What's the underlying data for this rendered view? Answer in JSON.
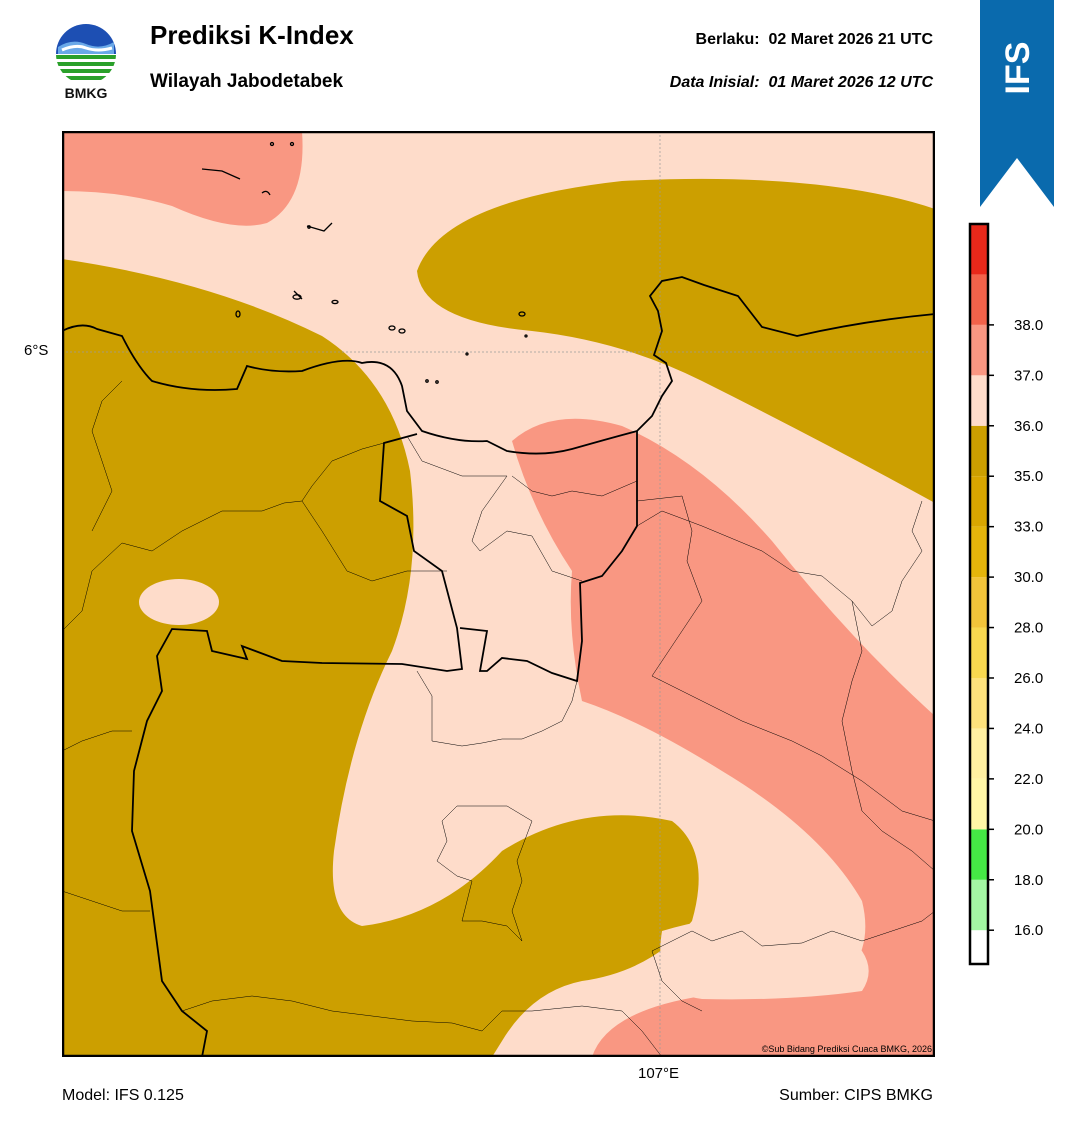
{
  "header": {
    "title": "Prediksi K-Index",
    "subtitle": "Wilayah Jabodetabek",
    "valid_label": "Berlaku:",
    "valid_value": "02 Maret 2026 21 UTC",
    "init_label": "Data Inisial:",
    "init_value": "01 Maret 2026 12 UTC"
  },
  "logo": {
    "text": "BMKG",
    "icon": "bmkg-logo-icon"
  },
  "ribbon": {
    "text": "IFS",
    "color": "#0a6aad"
  },
  "map": {
    "lat_label": "6°S",
    "lon_label": "107°E",
    "copyright": "©Sub Bidang Prediksi Cuaca BMKG, 2026",
    "colors": {
      "band_33_35": "#cc9f00",
      "band_35_36": "#fedcca",
      "band_36_37": "#f99782"
    }
  },
  "footer": {
    "model": "Model: IFS 0.125",
    "source": "Sumber: CIPS BMKG"
  },
  "colorbar": {
    "ticks": [
      "16.0",
      "18.0",
      "20.0",
      "22.0",
      "24.0",
      "26.0",
      "28.0",
      "30.0",
      "33.0",
      "35.0",
      "36.0",
      "37.0",
      "38.0"
    ],
    "colors": [
      "#ffffff",
      "#a3f7a3",
      "#45e845",
      "#fff6a6",
      "#fff0a1",
      "#fde27c",
      "#f8d84f",
      "#f2c43a",
      "#e5b50b",
      "#d9a600",
      "#cc9f00",
      "#fedcca",
      "#f99782",
      "#f2624a",
      "#e8281a"
    ]
  }
}
